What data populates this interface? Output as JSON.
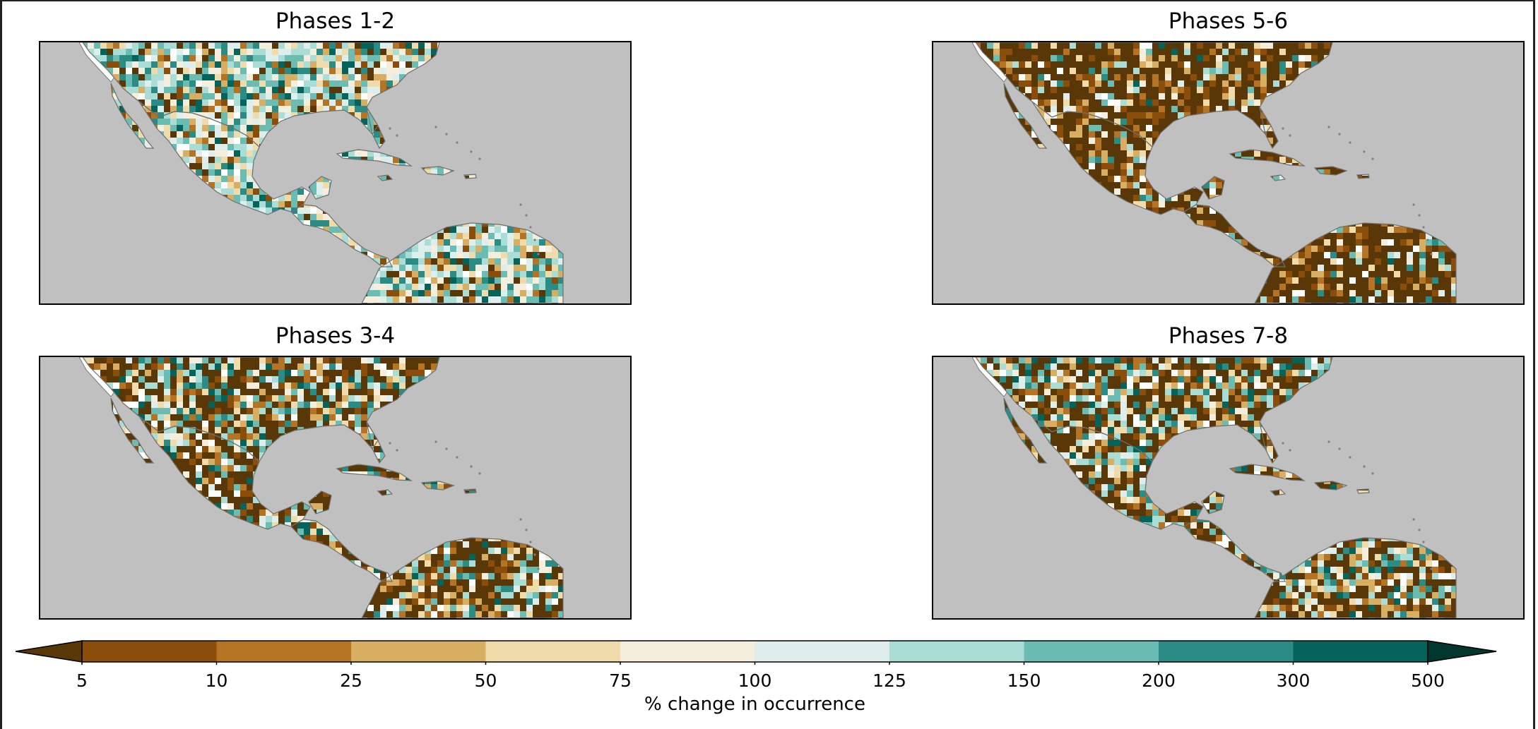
{
  "panels": [
    {
      "title": "Phases 1-2",
      "scheme": "wet"
    },
    {
      "title": "Phases 5-6",
      "scheme": "dry"
    },
    {
      "title": "Phases 3-4",
      "scheme": "mixed"
    },
    {
      "title": "Phases 7-8",
      "scheme": "mixed2"
    }
  ],
  "colorbar": {
    "label": "% change in occurrence",
    "ticks": [
      "5",
      "10",
      "25",
      "50",
      "75",
      "100",
      "125",
      "150",
      "200",
      "300",
      "500"
    ],
    "colors": [
      "#8b4e0a",
      "#b47424",
      "#d8ae63",
      "#f0dcaa",
      "#f5eedc",
      "#ddeeed",
      "#a9ddd5",
      "#6bbcb3",
      "#2b8c86",
      "#04635a"
    ],
    "under_color": "#5a3707",
    "over_color": "#01372f"
  },
  "colors": {
    "ocean": "#c0c0c0",
    "no_data": "#ffffff"
  }
}
